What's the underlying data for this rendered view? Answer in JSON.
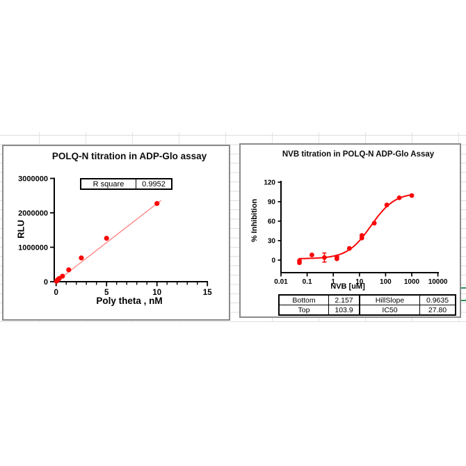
{
  "page": {
    "background": "#ffffff",
    "gridline_color": "#dedede",
    "accent_green": "#2f8f5a"
  },
  "chart_data": [
    {
      "type": "scatter",
      "title": "POLQ-N titration in ADP-Glo assay",
      "xlabel": "Poly theta , nM",
      "ylabel": "RLU",
      "xlim": [
        0,
        15
      ],
      "ylim": [
        0,
        3000000
      ],
      "xscale": "linear",
      "xticks": [
        0,
        5,
        10,
        15
      ],
      "xtick_labels": [
        "0",
        "5",
        "10",
        "15"
      ],
      "x_minor_step": 1,
      "yticks": [
        0,
        1000000,
        2000000,
        3000000
      ],
      "ytick_labels": [
        "0",
        "1000000",
        "2000000",
        "3000000"
      ],
      "points": [
        [
          0.039,
          15000
        ],
        [
          0.078,
          30000
        ],
        [
          0.156,
          55000
        ],
        [
          0.3125,
          95000
        ],
        [
          0.625,
          160000
        ],
        [
          1.25,
          345000
        ],
        [
          2.5,
          690000
        ],
        [
          5,
          1260000
        ],
        [
          10,
          2270000
        ]
      ],
      "fit_line": {
        "x1": 0,
        "y1": 0,
        "x2": 10.4,
        "y2": 2360000
      },
      "marker_color": "#fa0606",
      "line_color": "#ff8585",
      "axis_color": "#000000",
      "stats_table": {
        "rows": [
          [
            "R square",
            "0.9952"
          ]
        ]
      }
    },
    {
      "type": "scatter",
      "title": "NVB titration in POLQ-N ADP-Glo Assay",
      "xlabel": "NVB [uM]",
      "ylabel": "% Inhibition",
      "xscale": "log",
      "xlim": [
        0.01,
        10000
      ],
      "ylim": [
        -24,
        120
      ],
      "xticks": [
        0.01,
        0.1,
        1,
        10,
        100,
        1000,
        10000
      ],
      "xtick_labels": [
        "0.01",
        "0.1",
        "1",
        "10",
        "100",
        "1000",
        "10000"
      ],
      "yticks": [
        0,
        30,
        60,
        90,
        120
      ],
      "ytick_labels": [
        "0",
        "30",
        "60",
        "90",
        "120"
      ],
      "points": [
        {
          "x": 0.0508,
          "y": [
            -1,
            -4
          ]
        },
        {
          "x": 0.152,
          "y": [
            8
          ]
        },
        {
          "x": 0.457,
          "y": [
            4
          ],
          "err": 7
        },
        {
          "x": 1.372,
          "y": [
            2,
            5
          ]
        },
        {
          "x": 4.115,
          "y": [
            18
          ]
        },
        {
          "x": 12.35,
          "y": [
            34,
            38
          ]
        },
        {
          "x": 37.04,
          "y": [
            57
          ]
        },
        {
          "x": 111.1,
          "y": [
            85
          ]
        },
        {
          "x": 333.3,
          "y": [
            96
          ]
        },
        {
          "x": 1000,
          "y": [
            99.5
          ]
        }
      ],
      "fit_curve": {
        "model": "four_param_logistic",
        "bottom": 2.157,
        "top": 103.9,
        "ic50": 27.8,
        "hillslope": 0.9635,
        "x_start": 0.048,
        "x_end": 1050
      },
      "marker_color": "#fa0606",
      "line_color": "#fa0606",
      "axis_color": "#000000",
      "params_table": {
        "rows": [
          [
            "Bottom",
            "2.157",
            "HillSlope",
            "0.9635"
          ],
          [
            "Top",
            "103.9",
            "IC50",
            "27.80"
          ]
        ]
      }
    }
  ]
}
